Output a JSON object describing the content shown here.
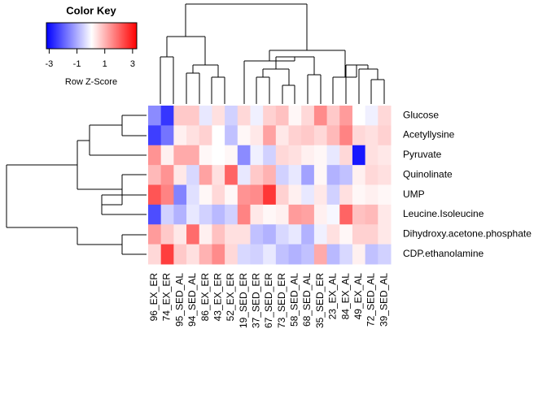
{
  "chart_data": {
    "type": "heatmap",
    "rows": [
      "Glucose",
      "Acetyllysine",
      "Pyruvate",
      "Quinolinate",
      "UMP",
      "Leucine.Isoleucine",
      "Dihydroxy.acetone.phosphate",
      "CDP.ethanolamine"
    ],
    "columns": [
      "96_EX_ER",
      "74_EX_ER",
      "95_SED_AL",
      "94_SED_AL",
      "86_EX_ER",
      "43_EX_ER",
      "52_EX_ER",
      "19_SED_ER",
      "37_SED_ER",
      "67_SED_ER",
      "73_SED_ER",
      "58_SED_AL",
      "68_SED_AL",
      "35_SED_ER",
      "23_EX_AL",
      "84_EX_AL",
      "49_EX_AL",
      "72_SED_AL",
      "39_SED_AL"
    ],
    "values": [
      [
        -1.5,
        -2.6,
        0.7,
        0.7,
        -0.3,
        0.4,
        -0.6,
        0.5,
        -0.2,
        0.6,
        0.8,
        0.1,
        0.5,
        1.5,
        0.7,
        1.3,
        0,
        -0.2,
        0.5
      ],
      [
        -2.5,
        -1.8,
        0.2,
        0.4,
        0.6,
        0,
        -0.8,
        0.1,
        0.3,
        1.2,
        0.3,
        0.6,
        0.7,
        0.5,
        0.9,
        1.6,
        0.5,
        0.4,
        0.6
      ],
      [
        1.4,
        0.2,
        1.1,
        1.1,
        0.1,
        0,
        0.1,
        -1.5,
        -0.2,
        -0.6,
        0.5,
        0.4,
        0.2,
        0.1,
        -0.3,
        0.5,
        -3,
        0.4,
        0.3
      ],
      [
        0.9,
        1.4,
        0.3,
        -0.5,
        1.2,
        0.4,
        2.0,
        -0.3,
        0.7,
        1.0,
        -0.6,
        -0.3,
        -1.2,
        0.1,
        -1.0,
        -0.8,
        0.2,
        0.5,
        0.4
      ],
      [
        2.2,
        1.6,
        -1.6,
        -0.4,
        0.1,
        0.5,
        0.1,
        1.4,
        1.5,
        2.6,
        0.6,
        0.2,
        -0.3,
        0.3,
        -0.6,
        0.4,
        0.1,
        0.2,
        0.1
      ],
      [
        -2.3,
        -0.6,
        -1.0,
        -0.3,
        -0.6,
        -0.9,
        -0.6,
        1.6,
        0.3,
        0.1,
        0.2,
        1.3,
        1.2,
        0.2,
        -0.1,
        2.0,
        0.8,
        0.9,
        0.3
      ],
      [
        1.3,
        0.7,
        0.3,
        1.9,
        0.2,
        0.8,
        0.4,
        0.4,
        -0.8,
        -1.0,
        -0.5,
        -0.3,
        -1.0,
        -0.2,
        0.4,
        0.1,
        0.6,
        0.6,
        0.3
      ],
      [
        0.5,
        2.5,
        0.7,
        0.4,
        1.0,
        1.5,
        0.5,
        -0.5,
        -0.6,
        -0.3,
        -0.8,
        -1.0,
        -0.8,
        1.1,
        -0.9,
        -0.5,
        0.2,
        -0.8,
        -0.6
      ]
    ],
    "colors": {
      "low": "#0000ff",
      "mid": "#ffffff",
      "high": "#ff0000"
    },
    "color_key": {
      "title": "Color Key",
      "xlabel": "Row Z-Score",
      "xlim": [
        -3.2,
        3.3
      ],
      "xticks": [
        -3,
        -1,
        1,
        3
      ]
    }
  }
}
